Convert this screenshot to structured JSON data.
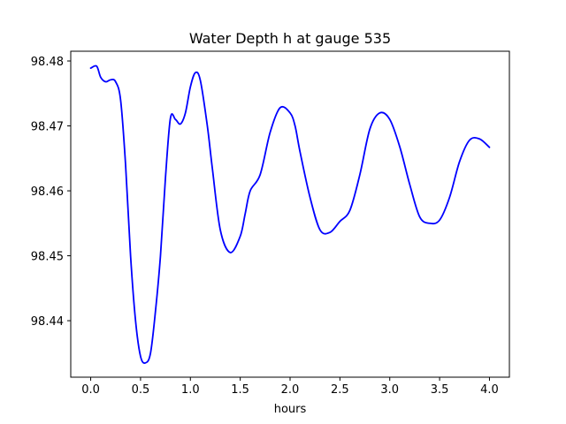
{
  "chart_data": {
    "type": "line",
    "title": "Water Depth h at gauge 535",
    "xlabel": "hours",
    "ylabel": "",
    "xlim": [
      -0.2,
      4.2
    ],
    "ylim": [
      98.4313,
      98.4815
    ],
    "xticks": [
      0.0,
      0.5,
      1.0,
      1.5,
      2.0,
      2.5,
      3.0,
      3.5,
      4.0
    ],
    "xtick_labels": [
      "0.0",
      "0.5",
      "1.0",
      "1.5",
      "2.0",
      "2.5",
      "3.0",
      "3.5",
      "4.0"
    ],
    "yticks": [
      98.44,
      98.45,
      98.46,
      98.47,
      98.48
    ],
    "ytick_labels": [
      "98.44",
      "98.45",
      "98.46",
      "98.47",
      "98.48"
    ],
    "grid": false,
    "legend": "none",
    "series": [
      {
        "color": "#0000ff",
        "x": [
          0.0,
          0.06,
          0.1,
          0.15,
          0.2,
          0.25,
          0.3,
          0.35,
          0.4,
          0.45,
          0.5,
          0.55,
          0.6,
          0.65,
          0.7,
          0.75,
          0.8,
          0.85,
          0.9,
          0.95,
          1.0,
          1.05,
          1.1,
          1.17,
          1.22,
          1.3,
          1.4,
          1.5,
          1.55,
          1.6,
          1.7,
          1.8,
          1.9,
          2.0,
          2.05,
          2.1,
          2.2,
          2.3,
          2.4,
          2.5,
          2.6,
          2.7,
          2.8,
          2.9,
          3.0,
          3.1,
          3.2,
          3.3,
          3.4,
          3.5,
          3.6,
          3.7,
          3.8,
          3.9,
          4.0
        ],
        "y": [
          98.4789,
          98.4792,
          98.4775,
          98.4768,
          98.4771,
          98.4768,
          98.474,
          98.464,
          98.45,
          98.44,
          98.4345,
          98.4335,
          98.435,
          98.4415,
          98.45,
          98.462,
          98.4712,
          98.471,
          98.4703,
          98.472,
          98.476,
          98.4782,
          98.477,
          98.47,
          98.4635,
          98.454,
          98.4505,
          98.453,
          98.4565,
          98.46,
          98.4625,
          98.469,
          98.4728,
          98.472,
          98.47,
          98.466,
          98.459,
          98.454,
          98.4536,
          98.4553,
          98.457,
          98.4625,
          98.4695,
          98.472,
          98.471,
          98.4668,
          98.461,
          98.456,
          98.455,
          98.4555,
          98.459,
          98.4645,
          98.4678,
          98.468,
          98.4667
        ]
      }
    ]
  }
}
